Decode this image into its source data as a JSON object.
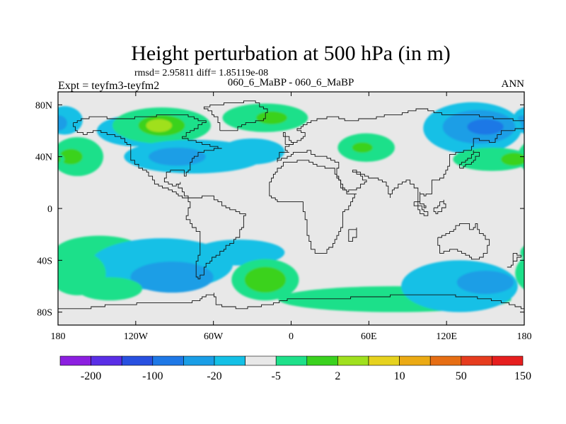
{
  "chart_data": {
    "type": "contour-map",
    "title": "Height perturbation at 500 hPa (in m)",
    "subtitle": "rmsd= 2.95811 diff= 1.85119e-08",
    "left_label": "Expt = teyfm3-teyfm2",
    "center_label": "060_6_MaBP - 060_6_MaBP",
    "right_label": "ANN",
    "x_ticks": [
      {
        "value": -180,
        "label": "180"
      },
      {
        "value": -120,
        "label": "120W"
      },
      {
        "value": -60,
        "label": "60W"
      },
      {
        "value": 0,
        "label": "0"
      },
      {
        "value": 60,
        "label": "60E"
      },
      {
        "value": 120,
        "label": "120E"
      },
      {
        "value": 180,
        "label": "180"
      }
    ],
    "y_ticks": [
      {
        "value": 80,
        "label": "80N"
      },
      {
        "value": 40,
        "label": "40N"
      },
      {
        "value": 0,
        "label": "0"
      },
      {
        "value": -40,
        "label": "40S"
      },
      {
        "value": -80,
        "label": "80S"
      }
    ],
    "xlim": [
      -180,
      180
    ],
    "ylim": [
      -90,
      90
    ],
    "colorbar": {
      "colors": [
        "#8c1fe0",
        "#5a2ee6",
        "#2850e0",
        "#1e78e6",
        "#1a9ee6",
        "#14c0e6",
        "#e8e8e8",
        "#1ee08a",
        "#3ad21e",
        "#a0e01e",
        "#e6d21e",
        "#ebaa14",
        "#e66e14",
        "#e63c1e",
        "#e61e1e"
      ],
      "labels": [
        {
          "boundary": 1,
          "label": "-200"
        },
        {
          "boundary": 3,
          "label": "-100"
        },
        {
          "boundary": 5,
          "label": "-20"
        },
        {
          "boundary": 7,
          "label": "-5"
        },
        {
          "boundary": 9,
          "label": "2"
        },
        {
          "boundary": 11,
          "label": "10"
        },
        {
          "boundary": 13,
          "label": "50"
        },
        {
          "boundary": 15,
          "label": "150"
        }
      ]
    },
    "background_color": "#e8e8e8",
    "regions": [
      {
        "level": -5,
        "color": "#14c0e6",
        "lon": -175,
        "lat": 68,
        "rlon": 14,
        "rlat": 11
      },
      {
        "level": -20,
        "color": "#1a9ee6",
        "lon": -180,
        "lat": 66,
        "rlon": 7,
        "rlat": 6
      },
      {
        "level": -5,
        "color": "#14c0e6",
        "lon": -120,
        "lat": 60,
        "rlon": 30,
        "rlat": 12
      },
      {
        "level": 2,
        "color": "#1ee08a",
        "lon": -100,
        "lat": 64,
        "rlon": 38,
        "rlat": 14
      },
      {
        "level": 10,
        "color": "#3ad21e",
        "lon": -100,
        "lat": 64,
        "rlon": 18,
        "rlat": 8
      },
      {
        "level": 10,
        "color": "#a0e01e",
        "lon": -102,
        "lat": 64,
        "rlon": 10,
        "rlat": 5
      },
      {
        "level": 2,
        "color": "#1ee08a",
        "lon": -20,
        "lat": 70,
        "rlon": 33,
        "rlat": 11
      },
      {
        "level": 10,
        "color": "#3ad21e",
        "lon": -15,
        "lat": 70,
        "rlon": 12,
        "rlat": 5
      },
      {
        "level": -5,
        "color": "#14c0e6",
        "lon": -75,
        "lat": 40,
        "rlon": 54,
        "rlat": 13
      },
      {
        "level": -20,
        "color": "#1a9ee6",
        "lon": -88,
        "lat": 40,
        "rlon": 22,
        "rlat": 7
      },
      {
        "level": -5,
        "color": "#14c0e6",
        "lon": -30,
        "lat": 44,
        "rlon": 25,
        "rlat": 10
      },
      {
        "level": 2,
        "color": "#1ee08a",
        "lon": -165,
        "lat": 40,
        "rlon": 20,
        "rlat": 15
      },
      {
        "level": 10,
        "color": "#3ad21e",
        "lon": -170,
        "lat": 40,
        "rlon": 9,
        "rlat": 6
      },
      {
        "level": 2,
        "color": "#1ee08a",
        "lon": 58,
        "lat": 47,
        "rlon": 22,
        "rlat": 11
      },
      {
        "level": 10,
        "color": "#3ad21e",
        "lon": 55,
        "lat": 47,
        "rlon": 8,
        "rlat": 4
      },
      {
        "level": -5,
        "color": "#14c0e6",
        "lon": 140,
        "lat": 62,
        "rlon": 38,
        "rlat": 20
      },
      {
        "level": -20,
        "color": "#1a9ee6",
        "lon": 145,
        "lat": 63,
        "rlon": 28,
        "rlat": 13
      },
      {
        "level": -100,
        "color": "#1e78e6",
        "lon": 150,
        "lat": 63,
        "rlon": 14,
        "rlat": 6
      },
      {
        "level": 2,
        "color": "#1ee08a",
        "lon": 155,
        "lat": 38,
        "rlon": 30,
        "rlat": 9
      },
      {
        "level": 10,
        "color": "#3ad21e",
        "lon": 172,
        "lat": 38,
        "rlon": 10,
        "rlat": 5
      },
      {
        "level": 2,
        "color": "#1ee08a",
        "lon": -148,
        "lat": -34,
        "rlon": 35,
        "rlat": 13
      },
      {
        "level": -5,
        "color": "#14c0e6",
        "lon": -100,
        "lat": -43,
        "rlon": 55,
        "rlat": 20
      },
      {
        "level": -20,
        "color": "#1a9ee6",
        "lon": -92,
        "lat": -53,
        "rlon": 32,
        "rlat": 12
      },
      {
        "level": 2,
        "color": "#1ee08a",
        "lon": -165,
        "lat": -50,
        "rlon": 22,
        "rlat": 17
      },
      {
        "level": 2,
        "color": "#1ee08a",
        "lon": -140,
        "lat": -62,
        "rlon": 25,
        "rlat": 9
      },
      {
        "level": -5,
        "color": "#14c0e6",
        "lon": -40,
        "lat": -34,
        "rlon": 35,
        "rlat": 10
      },
      {
        "level": 2,
        "color": "#1ee08a",
        "lon": -20,
        "lat": -55,
        "rlon": 26,
        "rlat": 16
      },
      {
        "level": 10,
        "color": "#3ad21e",
        "lon": -20,
        "lat": -55,
        "rlon": 16,
        "rlat": 10
      },
      {
        "level": 2,
        "color": "#1ee08a",
        "lon": 80,
        "lat": -70,
        "rlon": 90,
        "rlat": 10
      },
      {
        "level": -5,
        "color": "#14c0e6",
        "lon": 130,
        "lat": -60,
        "rlon": 45,
        "rlat": 20
      },
      {
        "level": -20,
        "color": "#1a9ee6",
        "lon": 150,
        "lat": -57,
        "rlon": 22,
        "rlat": 9
      }
    ],
    "coastlines": [
      {
        "name": "north-america",
        "points": [
          [
            -168,
            66
          ],
          [
            -156,
            71
          ],
          [
            -128,
            70
          ],
          [
            -100,
            73
          ],
          [
            -82,
            72
          ],
          [
            -66,
            66
          ],
          [
            -78,
            58
          ],
          [
            -84,
            54
          ],
          [
            -66,
            50
          ],
          [
            -54,
            47
          ],
          [
            -70,
            43
          ],
          [
            -76,
            35
          ],
          [
            -81,
            25
          ],
          [
            -82,
            30
          ],
          [
            -90,
            29
          ],
          [
            -97,
            26
          ],
          [
            -98,
            20
          ],
          [
            -92,
            18
          ],
          [
            -86,
            20
          ],
          [
            -87,
            16
          ],
          [
            -83,
            10
          ],
          [
            -80,
            8
          ],
          [
            -84,
            10
          ],
          [
            -92,
            14
          ],
          [
            -100,
            18
          ],
          [
            -106,
            22
          ],
          [
            -110,
            28
          ],
          [
            -114,
            31
          ],
          [
            -118,
            34
          ],
          [
            -124,
            41
          ],
          [
            -124,
            49
          ],
          [
            -132,
            55
          ],
          [
            -150,
            60
          ],
          [
            -158,
            57
          ],
          [
            -165,
            60
          ],
          [
            -168,
            66
          ]
        ]
      },
      {
        "name": "south-america",
        "points": [
          [
            -80,
            8
          ],
          [
            -62,
            10
          ],
          [
            -50,
            0
          ],
          [
            -35,
            -6
          ],
          [
            -40,
            -22
          ],
          [
            -48,
            -28
          ],
          [
            -58,
            -38
          ],
          [
            -65,
            -45
          ],
          [
            -68,
            -52
          ],
          [
            -70,
            -55
          ],
          [
            -74,
            -50
          ],
          [
            -74,
            -40
          ],
          [
            -71,
            -30
          ],
          [
            -71,
            -18
          ],
          [
            -77,
            -12
          ],
          [
            -81,
            -5
          ],
          [
            -80,
            0
          ],
          [
            -78,
            5
          ],
          [
            -80,
            8
          ]
        ]
      },
      {
        "name": "greenland",
        "points": [
          [
            -55,
            60
          ],
          [
            -45,
            60
          ],
          [
            -38,
            65
          ],
          [
            -22,
            70
          ],
          [
            -18,
            77
          ],
          [
            -28,
            83
          ],
          [
            -45,
            82
          ],
          [
            -60,
            80
          ],
          [
            -68,
            77
          ],
          [
            -56,
            70
          ],
          [
            -55,
            60
          ]
        ]
      },
      {
        "name": "africa",
        "points": [
          [
            -17,
            21
          ],
          [
            -10,
            31
          ],
          [
            -6,
            35
          ],
          [
            10,
            37
          ],
          [
            20,
            32
          ],
          [
            32,
            31
          ],
          [
            34,
            27
          ],
          [
            43,
            12
          ],
          [
            51,
            12
          ],
          [
            47,
            5
          ],
          [
            40,
            -5
          ],
          [
            40,
            -15
          ],
          [
            35,
            -24
          ],
          [
            27,
            -34
          ],
          [
            20,
            -35
          ],
          [
            16,
            -28
          ],
          [
            12,
            -18
          ],
          [
            13,
            -8
          ],
          [
            9,
            0
          ],
          [
            9,
            5
          ],
          [
            -8,
            5
          ],
          [
            -15,
            10
          ],
          [
            -17,
            15
          ],
          [
            -17,
            21
          ]
        ]
      },
      {
        "name": "eurasia",
        "points": [
          [
            -10,
            36
          ],
          [
            -9,
            43
          ],
          [
            -2,
            44
          ],
          [
            -4,
            48
          ],
          [
            2,
            51
          ],
          [
            8,
            54
          ],
          [
            10,
            58
          ],
          [
            5,
            62
          ],
          [
            12,
            66
          ],
          [
            20,
            70
          ],
          [
            30,
            71
          ],
          [
            45,
            68
          ],
          [
            60,
            70
          ],
          [
            72,
            73
          ],
          [
            80,
            73
          ],
          [
            100,
            77
          ],
          [
            120,
            73
          ],
          [
            140,
            72
          ],
          [
            160,
            70
          ],
          [
            180,
            67
          ],
          [
            180,
            62
          ],
          [
            163,
            60
          ],
          [
            157,
            51
          ],
          [
            142,
            54
          ],
          [
            140,
            45
          ],
          [
            130,
            43
          ],
          [
            122,
            40
          ],
          [
            122,
            32
          ],
          [
            118,
            24
          ],
          [
            108,
            20
          ],
          [
            108,
            12
          ],
          [
            104,
            9
          ],
          [
            100,
            13
          ],
          [
            100,
            3
          ],
          [
            104,
            1
          ],
          [
            98,
            8
          ],
          [
            98,
            16
          ],
          [
            92,
            22
          ],
          [
            80,
            15
          ],
          [
            77,
            8
          ],
          [
            73,
            20
          ],
          [
            67,
            24
          ],
          [
            57,
            25
          ],
          [
            56,
            27
          ],
          [
            48,
            30
          ],
          [
            58,
            21
          ],
          [
            53,
            16
          ],
          [
            44,
            13
          ],
          [
            40,
            16
          ],
          [
            35,
            28
          ],
          [
            36,
            36
          ],
          [
            28,
            41
          ],
          [
            22,
            40
          ],
          [
            15,
            45
          ],
          [
            12,
            44
          ],
          [
            4,
            43
          ],
          [
            -10,
            36
          ]
        ]
      },
      {
        "name": "australia",
        "points": [
          [
            114,
            -22
          ],
          [
            122,
            -18
          ],
          [
            130,
            -12
          ],
          [
            136,
            -12
          ],
          [
            137,
            -16
          ],
          [
            142,
            -11
          ],
          [
            146,
            -19
          ],
          [
            153,
            -25
          ],
          [
            151,
            -34
          ],
          [
            146,
            -39
          ],
          [
            140,
            -38
          ],
          [
            135,
            -35
          ],
          [
            129,
            -32
          ],
          [
            115,
            -34
          ],
          [
            114,
            -22
          ]
        ]
      },
      {
        "name": "antarctica",
        "points": [
          [
            -180,
            -78
          ],
          [
            -160,
            -78
          ],
          [
            -140,
            -75
          ],
          [
            -100,
            -73
          ],
          [
            -80,
            -72
          ],
          [
            -60,
            -65
          ],
          [
            -58,
            -74
          ],
          [
            -40,
            -78
          ],
          [
            -20,
            -74
          ],
          [
            0,
            -70
          ],
          [
            30,
            -70
          ],
          [
            60,
            -68
          ],
          [
            90,
            -66
          ],
          [
            120,
            -66
          ],
          [
            150,
            -69
          ],
          [
            165,
            -72
          ],
          [
            180,
            -78
          ]
        ]
      },
      {
        "name": "madagascar",
        "points": [
          [
            44,
            -16
          ],
          [
            50,
            -15
          ],
          [
            50,
            -22
          ],
          [
            47,
            -25
          ],
          [
            44,
            -22
          ],
          [
            44,
            -16
          ]
        ]
      },
      {
        "name": "britain",
        "points": [
          [
            -5,
            50
          ],
          [
            1,
            51
          ],
          [
            -2,
            56
          ],
          [
            -5,
            58
          ],
          [
            -6,
            55
          ],
          [
            -5,
            50
          ]
        ]
      },
      {
        "name": "japan",
        "points": [
          [
            130,
            31
          ],
          [
            135,
            34
          ],
          [
            140,
            36
          ],
          [
            142,
            41
          ],
          [
            145,
            44
          ],
          [
            141,
            45
          ],
          [
            139,
            38
          ],
          [
            131,
            34
          ],
          [
            130,
            31
          ]
        ]
      },
      {
        "name": "new-zealand",
        "points": [
          [
            172,
            -34
          ],
          [
            178,
            -38
          ],
          [
            175,
            -41
          ],
          [
            171,
            -44
          ],
          [
            167,
            -46
          ],
          [
            172,
            -41
          ],
          [
            172,
            -34
          ]
        ]
      },
      {
        "name": "indonesia-1",
        "points": [
          [
            95,
            5
          ],
          [
            105,
            -6
          ],
          [
            103,
            -4
          ],
          [
            95,
            5
          ]
        ]
      },
      {
        "name": "indonesia-2",
        "points": [
          [
            110,
            1
          ],
          [
            118,
            7
          ],
          [
            119,
            0
          ],
          [
            114,
            -4
          ],
          [
            110,
            1
          ]
        ]
      }
    ]
  }
}
